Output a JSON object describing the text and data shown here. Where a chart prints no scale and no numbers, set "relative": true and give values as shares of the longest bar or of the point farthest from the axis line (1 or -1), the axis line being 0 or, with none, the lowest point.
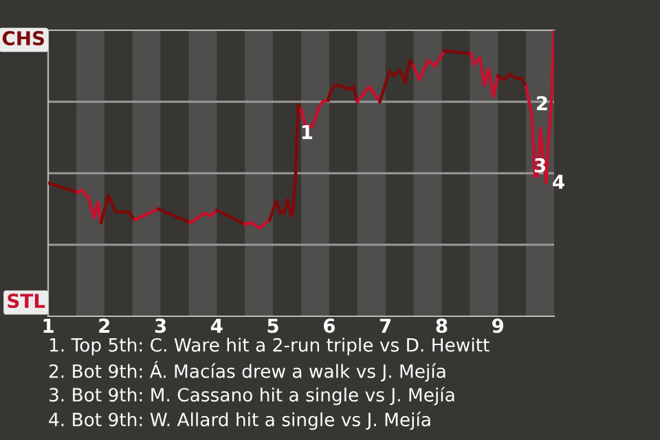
{
  "chart_data": {
    "type": "line",
    "relative": true,
    "xlim": [
      1,
      10
    ],
    "xticks": [
      1,
      2,
      3,
      4,
      5,
      6,
      7,
      8,
      9
    ],
    "marker": "none",
    "line_style": "solid",
    "series": [
      {
        "color": "#7d0a0a",
        "x": [
          1,
          1.52
        ],
        "values": [
          0.466,
          0.433
        ]
      },
      {
        "color": "#c8102e",
        "x": [
          1.52,
          1.59,
          1.67,
          1.71,
          1.82,
          1.88,
          1.94
        ],
        "values": [
          0.433,
          0.442,
          0.423,
          0.418,
          0.346,
          0.399,
          0.327
        ]
      },
      {
        "color": "#7d0a0a",
        "x": [
          1.94,
          2.07,
          2.2,
          2.43,
          2.54
        ],
        "values": [
          0.327,
          0.423,
          0.365,
          0.365,
          0.337
        ]
      },
      {
        "color": "#c8102e",
        "x": [
          2.54,
          2.96
        ],
        "values": [
          0.337,
          0.375
        ]
      },
      {
        "color": "#7d0a0a",
        "x": [
          2.96,
          3.53
        ],
        "values": [
          0.375,
          0.327
        ]
      },
      {
        "color": "#c8102e",
        "x": [
          3.53,
          3.79,
          3.88,
          4.0
        ],
        "values": [
          0.327,
          0.361,
          0.351,
          0.37
        ]
      },
      {
        "color": "#7d0a0a",
        "x": [
          4.0,
          4.5
        ],
        "values": [
          0.37,
          0.322
        ]
      },
      {
        "color": "#c8102e",
        "x": [
          4.5,
          4.62,
          4.76,
          4.94
        ],
        "values": [
          0.322,
          0.327,
          0.308,
          0.337
        ]
      },
      {
        "color": "#7d0a0a",
        "x": [
          4.94,
          5.06,
          5.13,
          5.19,
          5.26,
          5.32,
          5.35,
          5.4,
          5.45,
          5.5
        ],
        "values": [
          0.337,
          0.404,
          0.361,
          0.361,
          0.409,
          0.351,
          0.361,
          0.495,
          0.74,
          0.721
        ]
      },
      {
        "color": "#c8102e",
        "x": [
          5.5,
          5.58,
          5.7,
          5.82,
          5.88,
          5.98
        ],
        "values": [
          0.721,
          0.663,
          0.663,
          0.731,
          0.75,
          0.755
        ]
      },
      {
        "color": "#7d0a0a",
        "x": [
          5.98,
          6.02,
          6.11,
          6.24,
          6.35,
          6.43,
          6.5
        ],
        "values": [
          0.755,
          0.784,
          0.808,
          0.803,
          0.793,
          0.803,
          0.75
        ]
      },
      {
        "color": "#c8102e",
        "x": [
          6.5,
          6.71,
          6.9
        ],
        "values": [
          0.75,
          0.803,
          0.75
        ]
      },
      {
        "color": "#7d0a0a",
        "x": [
          6.9,
          7.07,
          7.15,
          7.26,
          7.35,
          7.43,
          7.5
        ],
        "values": [
          0.75,
          0.856,
          0.841,
          0.861,
          0.817,
          0.894,
          0.875
        ]
      },
      {
        "color": "#c8102e",
        "x": [
          7.5,
          7.6,
          7.76,
          7.88,
          8.05
        ],
        "values": [
          0.875,
          0.827,
          0.894,
          0.875,
          0.928
        ]
      },
      {
        "color": "#7d0a0a",
        "x": [
          8.05,
          8.52
        ],
        "values": [
          0.928,
          0.918
        ]
      },
      {
        "color": "#c8102e",
        "x": [
          8.52,
          8.58,
          8.68,
          8.76,
          8.84,
          8.92,
          9.0
        ],
        "values": [
          0.918,
          0.88,
          0.904,
          0.808,
          0.865,
          0.769,
          0.841
        ]
      },
      {
        "color": "#7d0a0a",
        "x": [
          9.0,
          9.11,
          9.21,
          9.32,
          9.42,
          9.5
        ],
        "values": [
          0.841,
          0.827,
          0.846,
          0.832,
          0.832,
          0.803
        ]
      },
      {
        "color": "#c8102e",
        "x": [
          9.5,
          9.6,
          9.66,
          9.7,
          9.76,
          9.8,
          9.86,
          9.88,
          9.94,
          10
        ],
        "values": [
          0.803,
          0.707,
          0.49,
          0.49,
          0.659,
          0.563,
          0.466,
          0.563,
          0.707,
          1.0
        ]
      }
    ],
    "bands": [
      {
        "axis": "x",
        "from": 1.5,
        "to": 2,
        "color": "#4f4e4c"
      },
      {
        "axis": "x",
        "from": 2.5,
        "to": 3,
        "color": "#4f4e4c"
      },
      {
        "axis": "x",
        "from": 3.5,
        "to": 4,
        "color": "#4f4e4c"
      },
      {
        "axis": "x",
        "from": 4.5,
        "to": 5,
        "color": "#4f4e4c"
      },
      {
        "axis": "x",
        "from": 5.5,
        "to": 6,
        "color": "#4f4e4c"
      },
      {
        "axis": "x",
        "from": 6.5,
        "to": 7,
        "color": "#4f4e4c"
      },
      {
        "axis": "x",
        "from": 7.5,
        "to": 8,
        "color": "#4f4e4c"
      },
      {
        "axis": "x",
        "from": 8.5,
        "to": 9,
        "color": "#4f4e4c"
      },
      {
        "axis": "x",
        "from": 9.5,
        "to": 10,
        "color": "#4f4e4c"
      }
    ],
    "ref_lines": [
      {
        "axis": "y",
        "value": 0.25,
        "color": "#9a9a9a"
      },
      {
        "axis": "y",
        "value": 0.5,
        "color": "#9a9a9a"
      },
      {
        "axis": "y",
        "value": 0.75,
        "color": "#9a9a9a"
      }
    ],
    "annotations": [
      "CHS",
      "STL",
      {
        "text": "1",
        "x": 5.45,
        "y": 0.74
      },
      {
        "text": "2",
        "x": 9.6,
        "y": 0.707
      },
      {
        "text": "3",
        "x": 9.7,
        "y": 0.49
      },
      {
        "text": "4",
        "x": 9.86,
        "y": 0.466
      },
      "1. Top 5th: C. Ware hit a 2-run triple vs D. Hewitt",
      "2. Bot 9th: Á. Macías drew a walk vs J. Mejía",
      "3. Bot 9th: M. Cassano hit a single vs J. Mejía",
      "4. Bot 9th: W. Allard hit a single vs J. Mejía"
    ]
  }
}
